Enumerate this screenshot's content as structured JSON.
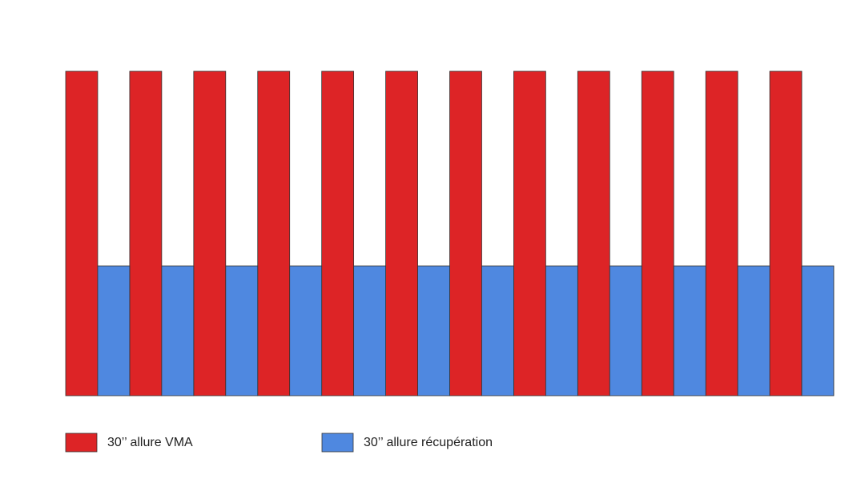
{
  "chart_data": {
    "type": "bar",
    "categories": [
      null,
      null,
      null,
      null,
      null,
      null,
      null,
      null,
      null,
      null,
      null,
      null,
      null,
      null,
      null,
      null,
      null,
      null,
      null,
      null,
      null,
      null,
      null,
      null
    ],
    "series": [
      {
        "name": "30’’ allure VMA",
        "color": "#dd2426",
        "values": [
          100,
          null,
          100,
          null,
          100,
          null,
          100,
          null,
          100,
          null,
          100,
          null,
          100,
          null,
          100,
          null,
          100,
          null,
          100,
          null,
          100,
          null,
          100,
          null
        ]
      },
      {
        "name": "30’’ allure récupération",
        "color": "#4f88e0",
        "values": [
          null,
          40,
          null,
          40,
          null,
          40,
          null,
          40,
          null,
          40,
          null,
          40,
          null,
          40,
          null,
          40,
          null,
          40,
          null,
          40,
          null,
          40,
          null,
          40
        ]
      }
    ],
    "ylim": [
      0,
      100
    ],
    "legend": "bottom"
  }
}
